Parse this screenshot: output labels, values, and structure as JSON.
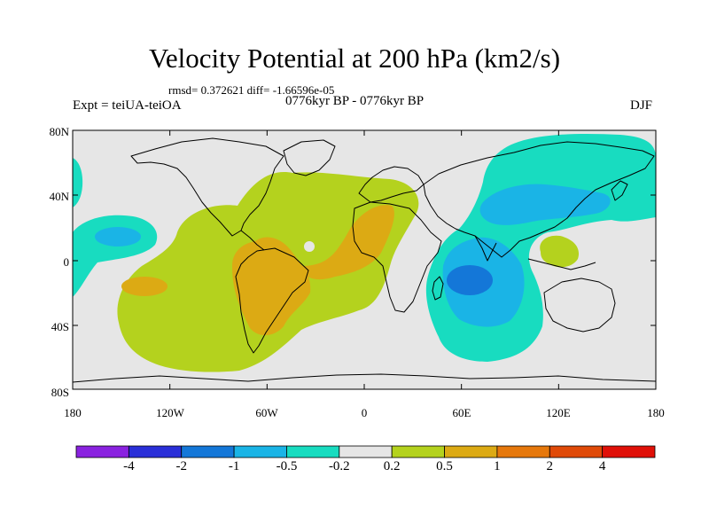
{
  "title": "Velocity Potential at 200 hPa (km2/s)",
  "stats": "rmsd= 0.372621  diff= -1.66596e-05",
  "experiment": "Expt = teiUA-teiOA",
  "period": "0776kyr BP - 0776kyr BP",
  "season": "DJF",
  "lat_labels": [
    "80N",
    "40N",
    "0",
    "40S",
    "80S"
  ],
  "lon_labels": [
    "180",
    "120W",
    "60W",
    "0",
    "60E",
    "120E",
    "180"
  ],
  "colorbar": {
    "labels": [
      "-4",
      "-2",
      "-1",
      "-0.5",
      "-0.2",
      "0.2",
      "0.5",
      "1",
      "2",
      "4"
    ],
    "colors": [
      "#8a22e0",
      "#2a2fd8",
      "#1477d8",
      "#1ab4e6",
      "#18dcc0",
      "#e6e6e6",
      "#b4d21e",
      "#dcaa14",
      "#e6780c",
      "#e04a08",
      "#e01008"
    ]
  },
  "map_colors": {
    "neutral": "#e6e6e6",
    "pos_0_2": "#b4d21e",
    "pos_0_5": "#dcaa14",
    "neg_0_2": "#18dcc0",
    "neg_0_5": "#1ab4e6",
    "neg_1": "#1477d8"
  }
}
